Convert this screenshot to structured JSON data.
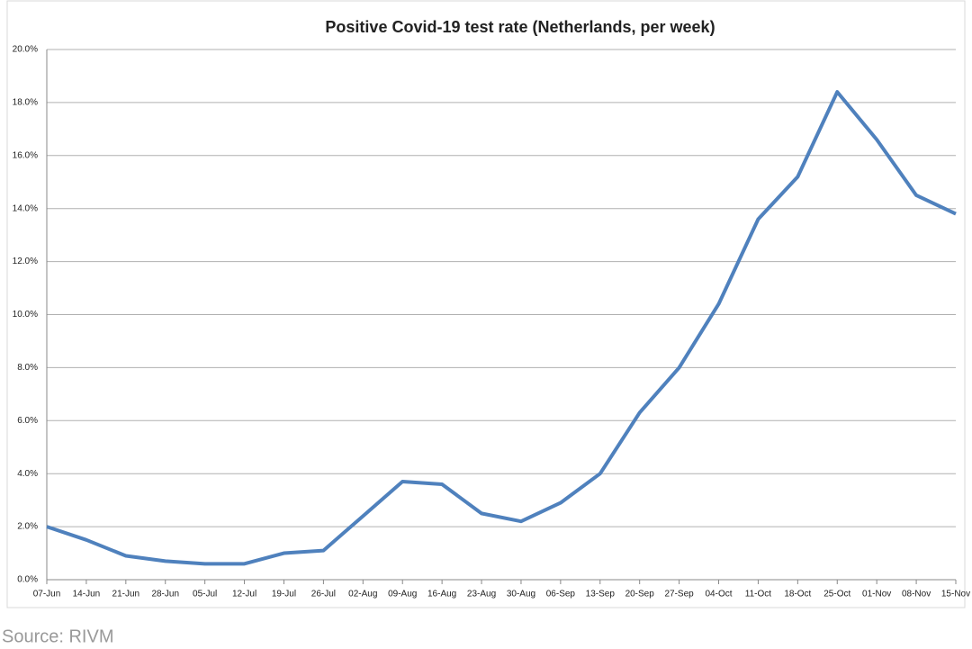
{
  "chart_data": {
    "type": "line",
    "title": "Positive Covid-19 test rate (Netherlands, per week)",
    "categories": [
      "07-Jun",
      "14-Jun",
      "21-Jun",
      "28-Jun",
      "05-Jul",
      "12-Jul",
      "19-Jul",
      "26-Jul",
      "02-Aug",
      "09-Aug",
      "16-Aug",
      "23-Aug",
      "30-Aug",
      "06-Sep",
      "13-Sep",
      "20-Sep",
      "27-Sep",
      "04-Oct",
      "11-Oct",
      "18-Oct",
      "25-Oct",
      "01-Nov",
      "08-Nov",
      "15-Nov"
    ],
    "values": [
      2.0,
      1.5,
      0.9,
      0.7,
      0.6,
      0.6,
      1.0,
      1.1,
      2.4,
      3.7,
      3.6,
      2.5,
      2.2,
      2.9,
      4.0,
      6.3,
      8.0,
      10.4,
      13.6,
      15.2,
      18.4,
      16.6,
      14.5,
      13.8
    ],
    "color": "#4f81bd",
    "ylim": [
      0,
      20
    ],
    "yticks": [
      {
        "value": 0,
        "label": "0.0%"
      },
      {
        "value": 2,
        "label": "2.0%"
      },
      {
        "value": 4,
        "label": "4.0%"
      },
      {
        "value": 6,
        "label": "6.0%"
      },
      {
        "value": 8,
        "label": "8.0%"
      },
      {
        "value": 10,
        "label": "10.0%"
      },
      {
        "value": 12,
        "label": "12.0%"
      },
      {
        "value": 14,
        "label": "14.0%"
      },
      {
        "value": 16,
        "label": "16.0%"
      },
      {
        "value": 18,
        "label": "18.0%"
      },
      {
        "value": 20,
        "label": "20.0%"
      }
    ],
    "grid": true,
    "source": "Source: RIVM"
  }
}
